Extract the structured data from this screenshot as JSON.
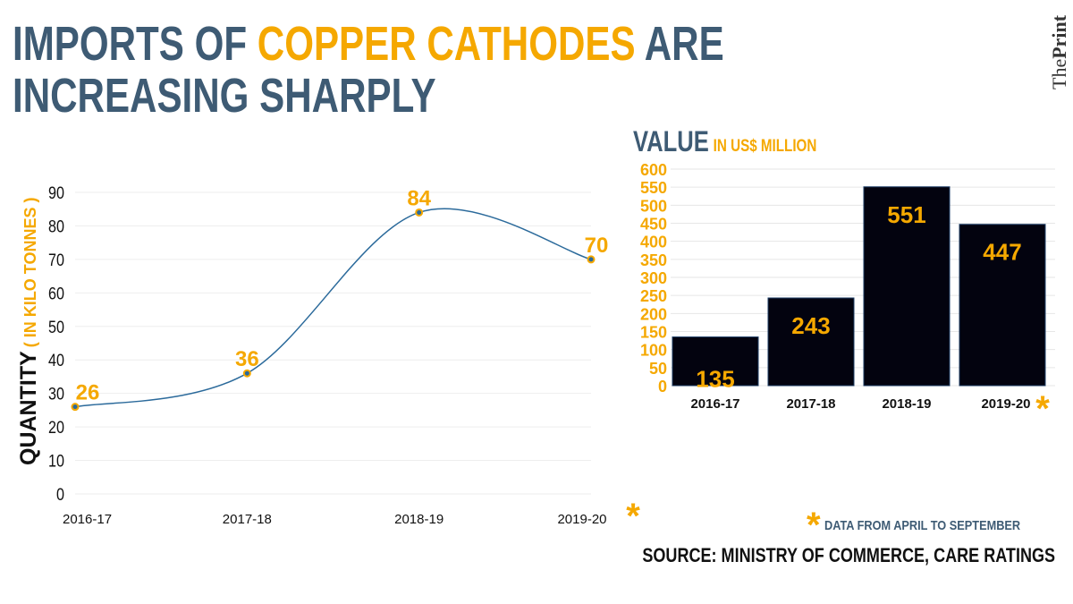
{
  "title": {
    "line1_a": "IMPORTS OF ",
    "line1_highlight": "COPPER CATHODES",
    "line1_b": " ARE",
    "line2": "INCREASING SHARPLY"
  },
  "logo": {
    "the": "The",
    "print": "Print"
  },
  "colors": {
    "title": "#3e5b74",
    "accent": "#f5a800",
    "line": "#2b6a9b",
    "bar": "#03030f"
  },
  "chart_data": [
    {
      "type": "line",
      "categories": [
        "2016-17",
        "2017-18",
        "2018-19",
        "2019-20"
      ],
      "values": [
        26,
        36,
        84,
        70
      ],
      "data_labels": [
        "26",
        "36",
        "84",
        "70"
      ],
      "ylabel": "QUANTITY",
      "ylabel_unit": "( IN KILO TONNES )",
      "ylim": [
        0,
        90
      ],
      "yticks": [
        0,
        10,
        20,
        30,
        40,
        50,
        60,
        70,
        80,
        90
      ],
      "grid": true,
      "marker": "*"
    },
    {
      "type": "bar",
      "title": "VALUE",
      "title_unit": "IN US$ MILLION",
      "categories": [
        "2016-17",
        "2017-18",
        "2018-19",
        "2019-20"
      ],
      "values": [
        135,
        243,
        551,
        447
      ],
      "data_labels": [
        "135",
        "243",
        "551",
        "447"
      ],
      "ylim": [
        0,
        600
      ],
      "yticks": [
        0,
        50,
        100,
        150,
        200,
        250,
        300,
        350,
        400,
        450,
        500,
        550,
        600
      ],
      "grid": true,
      "marker": "*"
    }
  ],
  "footnote": {
    "star": "*",
    "text": "DATA FROM APRIL TO SEPTEMBER"
  },
  "source": "SOURCE:  MINISTRY OF COMMERCE, CARE RATINGS"
}
